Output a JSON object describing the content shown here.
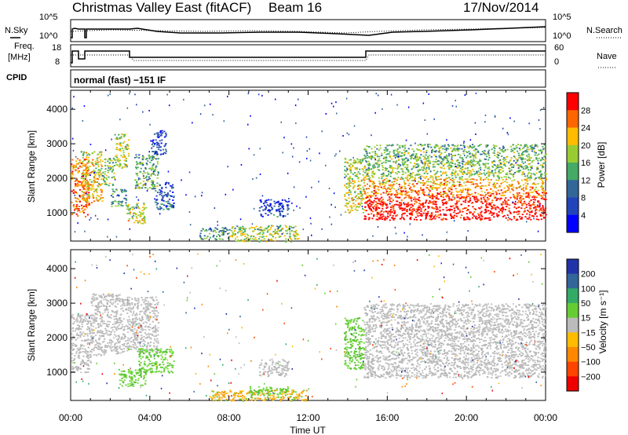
{
  "header": {
    "title": "Christmas Valley East (fitACF)",
    "beam": "Beam 16",
    "date": "17/Nov/2014"
  },
  "strip_panels": {
    "left_labels": {
      "nsky": "N.Sky",
      "freq_top": "Freq.",
      "freq_bottom": "[MHz]",
      "cpid": "CPID"
    },
    "right_labels": {
      "nsearch": "N.Search",
      "nave": "Nave"
    },
    "noise_ticks_left": [
      "10^5",
      "10^0"
    ],
    "noise_ticks_right": [
      "10^5",
      "10^0"
    ],
    "freq_ticks": [
      "18",
      "8"
    ],
    "nave_ticks": [
      "60",
      "0"
    ],
    "cpid_text": "normal (fast) −151 IF"
  },
  "chart_data": [
    {
      "type": "heatmap",
      "name": "power",
      "ylabel": "Slant Range [km]",
      "ylim": [
        180,
        4550
      ],
      "yticks": [
        1000,
        2000,
        3000,
        4000
      ],
      "xlim": [
        0,
        24
      ],
      "colorbar": {
        "label": "Power [dB]",
        "ticks": [
          "4",
          "8",
          "12",
          "16",
          "20",
          "24",
          "28"
        ],
        "colors": [
          "#0000ff",
          "#2244bb",
          "#336699",
          "#44aa66",
          "#99cc33",
          "#ffbb00",
          "#ff6600",
          "#ff0000"
        ]
      },
      "regions": [
        {
          "t0": 0.0,
          "t1": 0.9,
          "r0": 900,
          "r1": 2600,
          "level": 0.75
        },
        {
          "t0": 0.5,
          "t1": 1.6,
          "r0": 1300,
          "r1": 2800,
          "level": 0.6
        },
        {
          "t0": 1.6,
          "t1": 2.2,
          "r0": 1800,
          "r1": 2600,
          "level": 0.45
        },
        {
          "t0": 2.2,
          "t1": 2.9,
          "r0": 2300,
          "r1": 3300,
          "level": 0.55
        },
        {
          "t0": 2.0,
          "t1": 2.8,
          "r0": 1200,
          "r1": 1700,
          "level": 0.35
        },
        {
          "t0": 2.8,
          "t1": 3.8,
          "r0": 700,
          "r1": 1300,
          "level": 0.55
        },
        {
          "t0": 3.2,
          "t1": 4.4,
          "r0": 1700,
          "r1": 2700,
          "level": 0.4
        },
        {
          "t0": 4.2,
          "t1": 5.2,
          "r0": 1100,
          "r1": 1900,
          "level": 0.2
        },
        {
          "t0": 4.0,
          "t1": 4.8,
          "r0": 2700,
          "r1": 3400,
          "level": 0.15
        },
        {
          "t0": 6.5,
          "t1": 8.0,
          "r0": 230,
          "r1": 600,
          "level": 0.35
        },
        {
          "t0": 8.0,
          "t1": 11.5,
          "r0": 180,
          "r1": 650,
          "level": 0.5
        },
        {
          "t0": 9.5,
          "t1": 11.0,
          "r0": 900,
          "r1": 1400,
          "level": 0.15
        },
        {
          "t0": 13.8,
          "t1": 14.8,
          "r0": 1000,
          "r1": 2600,
          "level": 0.55
        },
        {
          "t0": 14.8,
          "t1": 24.0,
          "r0": 800,
          "r1": 1500,
          "level": 0.92
        },
        {
          "t0": 14.8,
          "t1": 24.0,
          "r0": 1500,
          "r1": 2000,
          "level": 0.7
        },
        {
          "t0": 14.8,
          "t1": 24.0,
          "r0": 2000,
          "r1": 3000,
          "level": 0.45
        }
      ]
    },
    {
      "type": "heatmap",
      "name": "velocity",
      "ylabel": "Slant Range [km]",
      "xlabel": "Time UT",
      "ylim": [
        180,
        4550
      ],
      "yticks": [
        1000,
        2000,
        3000,
        4000
      ],
      "xlim": [
        0,
        24
      ],
      "xticks": [
        "00:00",
        "04:00",
        "08:00",
        "12:00",
        "16:00",
        "20:00",
        "00:00"
      ],
      "colorbar": {
        "label": "Velocity [m s⁻¹]",
        "ticks": [
          "200",
          "100",
          "50",
          "15",
          "−15",
          "−50",
          "−100",
          "−200"
        ],
        "colors": [
          "#2233aa",
          "#336699",
          "#33aa66",
          "#66cc33",
          "#bbbbbb",
          "#ffbb00",
          "#ff8800",
          "#ff4400",
          "#ee0000"
        ]
      },
      "regions": [
        {
          "t0": 0.0,
          "t1": 1.0,
          "r0": 1000,
          "r1": 2700,
          "level": "ground"
        },
        {
          "t0": 1.0,
          "t1": 2.6,
          "r0": 1500,
          "r1": 3300,
          "level": "ground"
        },
        {
          "t0": 2.6,
          "t1": 4.4,
          "r0": 1600,
          "r1": 3200,
          "level": "ground"
        },
        {
          "t0": 2.4,
          "t1": 3.8,
          "r0": 600,
          "r1": 1100,
          "level": "green"
        },
        {
          "t0": 3.4,
          "t1": 5.2,
          "r0": 1000,
          "r1": 1700,
          "level": "green"
        },
        {
          "t0": 7.0,
          "t1": 12.0,
          "r0": 180,
          "r1": 500,
          "level": "orange"
        },
        {
          "t0": 9.0,
          "t1": 11.0,
          "r0": 350,
          "r1": 600,
          "level": "green"
        },
        {
          "t0": 9.5,
          "t1": 11.0,
          "r0": 900,
          "r1": 1400,
          "level": "ground"
        },
        {
          "t0": 13.8,
          "t1": 14.8,
          "r0": 1100,
          "r1": 2600,
          "level": "green"
        },
        {
          "t0": 14.8,
          "t1": 24.0,
          "r0": 850,
          "r1": 2600,
          "level": "ground"
        },
        {
          "t0": 14.8,
          "t1": 24.0,
          "r0": 2600,
          "r1": 3000,
          "level": "ground"
        }
      ]
    }
  ]
}
